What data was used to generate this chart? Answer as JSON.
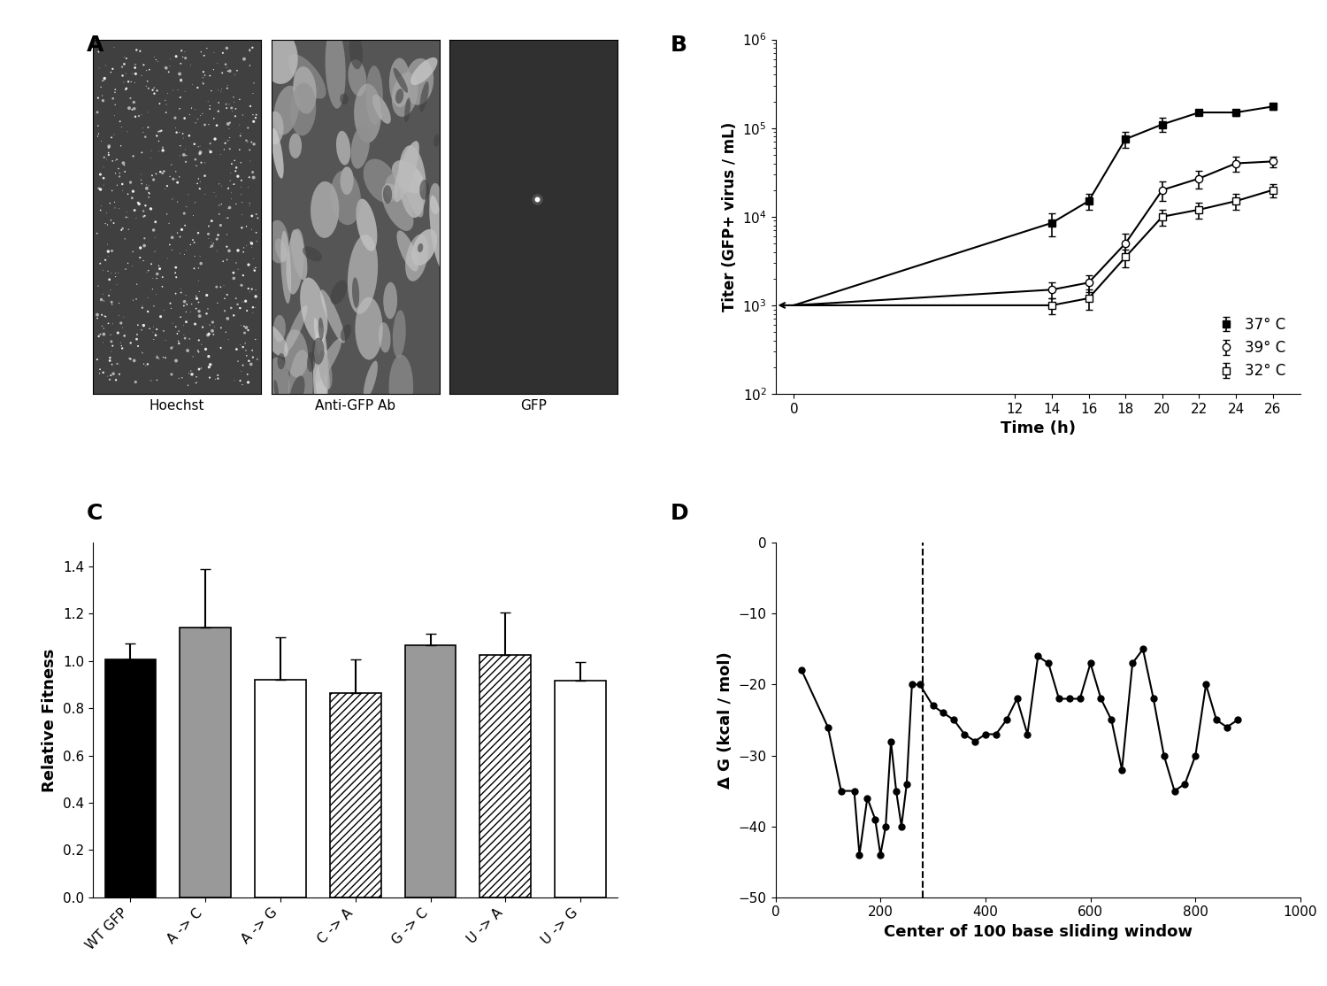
{
  "panel_B": {
    "time_points": [
      14,
      16,
      18,
      20,
      22,
      24,
      26
    ],
    "series_37": {
      "label": "37° C",
      "y0": 1000,
      "values": [
        8500,
        15000,
        75000,
        110000,
        150000,
        150000,
        175000
      ],
      "yerr": [
        2500,
        3000,
        15000,
        20000,
        10000,
        12000,
        15000
      ]
    },
    "series_39": {
      "label": "39° C",
      "y0": 1000,
      "values": [
        1500,
        1800,
        5000,
        20000,
        27000,
        40000,
        42000
      ],
      "yerr": [
        300,
        400,
        1500,
        5000,
        6000,
        8000,
        6000
      ]
    },
    "series_32": {
      "label": "32° C",
      "y0": 1000,
      "values": [
        1000,
        1200,
        3500,
        10000,
        12000,
        15000,
        20000
      ],
      "yerr": [
        200,
        300,
        800,
        2000,
        2500,
        3000,
        3500
      ]
    },
    "ylabel": "Titer (GFP+ virus / mL)",
    "xlabel": "Time (h)",
    "ylim_low": 100,
    "ylim_high": 1000000,
    "xlim_low": -1,
    "xlim_high": 27.5,
    "xticks": [
      0,
      12,
      14,
      16,
      18,
      20,
      22,
      24,
      26
    ]
  },
  "panel_C": {
    "categories": [
      "WT GFP",
      "A -> C",
      "A -> G",
      "C -> A",
      "G -> C",
      "U -> A",
      "U -> G"
    ],
    "values": [
      1.005,
      1.14,
      0.92,
      0.865,
      1.065,
      1.025,
      0.915
    ],
    "errors": [
      0.07,
      0.25,
      0.18,
      0.14,
      0.05,
      0.18,
      0.08
    ],
    "colors": [
      "#000000",
      "#999999",
      "#ffffff",
      "#ffffff",
      "#999999",
      "#ffffff",
      "#ffffff"
    ],
    "hatches": [
      "",
      "",
      "",
      "////",
      "",
      "////",
      ""
    ],
    "ylabel": "Relative Fitness",
    "ylim_low": 0,
    "ylim_high": 1.5,
    "yticks": [
      0.0,
      0.2,
      0.4,
      0.6,
      0.8,
      1.0,
      1.2,
      1.4
    ]
  },
  "panel_D": {
    "x": [
      50,
      100,
      125,
      150,
      160,
      175,
      190,
      200,
      210,
      220,
      230,
      240,
      250,
      260,
      275,
      300,
      320,
      340,
      360,
      380,
      400,
      420,
      440,
      460,
      480,
      500,
      520,
      540,
      560,
      580,
      600,
      620,
      640,
      660,
      680,
      700,
      720,
      740,
      760,
      780,
      800,
      820,
      840,
      860,
      880
    ],
    "y": [
      -18,
      -26,
      -35,
      -35,
      -44,
      -36,
      -39,
      -44,
      -40,
      -28,
      -35,
      -40,
      -34,
      -20,
      -20,
      -23,
      -24,
      -25,
      -27,
      -28,
      -27,
      -27,
      -25,
      -22,
      -27,
      -16,
      -17,
      -22,
      -22,
      -22,
      -17,
      -22,
      -25,
      -32,
      -17,
      -15,
      -22,
      -30,
      -35,
      -34,
      -30,
      -20,
      -25,
      -26,
      -25
    ],
    "dashed_x": 280,
    "ylabel": "Δ G (kcal / mol)",
    "xlabel": "Center of 100 base sliding window",
    "ylim_low": -50,
    "ylim_high": 0,
    "xlim_low": 0,
    "xlim_high": 1000,
    "yticks": [
      0,
      -10,
      -20,
      -30,
      -40,
      -50
    ],
    "xticks": [
      0,
      200,
      400,
      600,
      800,
      1000
    ]
  },
  "panel_A": {
    "titles": [
      "Hoechst",
      "Anti-GFP Ab",
      "GFP"
    ]
  },
  "background_color": "#ffffff",
  "label_fontsize": 18,
  "axis_fontsize": 12,
  "tick_fontsize": 11
}
